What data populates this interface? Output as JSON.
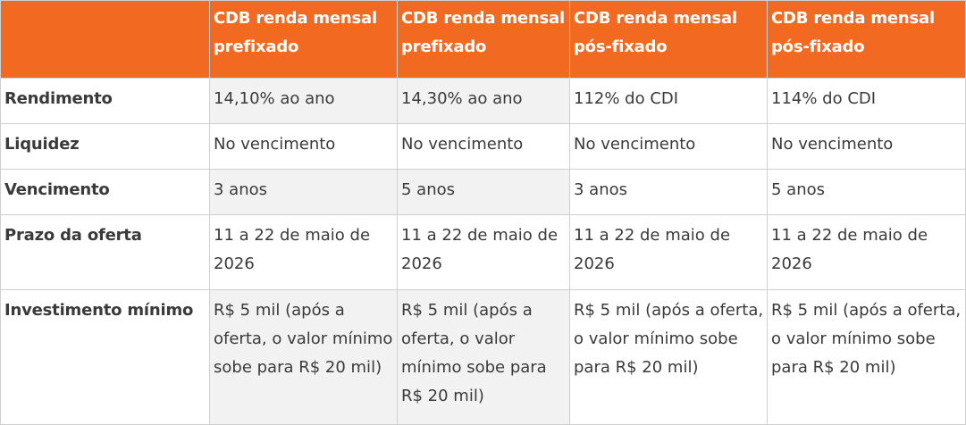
{
  "columns": [
    {
      "label": "CDB renda mensal prefixado"
    },
    {
      "label": "CDB renda mensal prefixado"
    },
    {
      "label": "CDB renda mensal pós-fixado"
    },
    {
      "label": "CDB renda mensal pós-fixado"
    }
  ],
  "rows": [
    {
      "label": "Rendimento",
      "cells": [
        "14,10% ao ano",
        "14,30% ao ano",
        "112% do CDI",
        "114% do CDI"
      ]
    },
    {
      "label": "Liquidez",
      "cells": [
        "No vencimento",
        "No vencimento",
        "No vencimento",
        "No vencimento"
      ]
    },
    {
      "label": "Vencimento",
      "cells": [
        "3 anos",
        "5 anos",
        "3 anos",
        "5 anos"
      ]
    },
    {
      "label": "Prazo da oferta",
      "cells": [
        "11 a 22 de maio de 2026",
        "11 a 22 de maio de 2026",
        "11 a 22 de maio de 2026",
        "11 a 22 de maio de 2026"
      ]
    },
    {
      "label": "Investimento mínimo",
      "cells": [
        "R$ 5 mil (após a oferta, o valor mínimo sobe para R$ 20 mil)",
        "R$ 5 mil (após a oferta, o valor mínimo sobe para R$ 20 mil)",
        "R$ 5 mil (após a oferta, o valor mínimo sobe para R$ 20 mil)",
        "R$ 5 mil (após a oferta, o valor mínimo sobe para R$ 20 mil)"
      ]
    }
  ],
  "colors": {
    "header_bg": "#f26a21",
    "header_text": "#ffffff",
    "shade": "#f2f2f2",
    "border": "#cfcfcf"
  }
}
